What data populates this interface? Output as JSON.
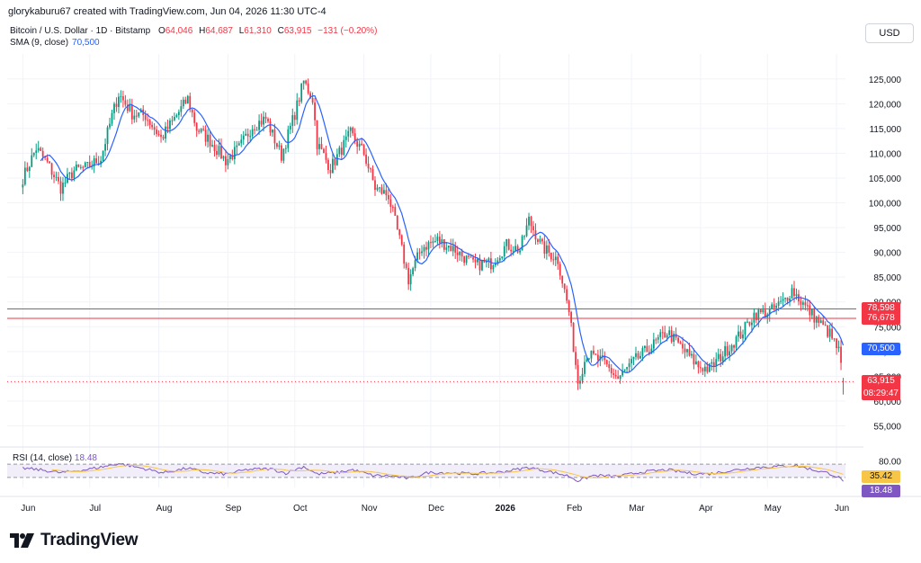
{
  "header": {
    "published_by": "glorykaburu67 created with TradingView.com, Jun 04, 2026 11:30 UTC-4"
  },
  "legend": {
    "symbol": "Bitcoin / U.S. Dollar · 1D · Bitstamp",
    "open_label": "O",
    "open": "64,046",
    "high_label": "H",
    "high": "64,687",
    "low_label": "L",
    "low": "61,310",
    "close_label": "C",
    "close": "63,915",
    "change": "−131 (−0.20%)",
    "sma_label": "SMA (9, close)",
    "sma_value": "70,500"
  },
  "currency_button": "USD",
  "brand": {
    "name": "TradingView"
  },
  "colors": {
    "up": "#089981",
    "down": "#f23645",
    "sma": "#2962ff",
    "rsi": "#7e57c2",
    "rsi_ma": "#f7c548",
    "hline": "#f23645",
    "rsi_band": "#ede7f6"
  },
  "chart_data": [
    {
      "type": "candlestick",
      "title": "Bitcoin / U.S. Dollar · 1D · Bitstamp",
      "x_tick_labels": [
        "Jun",
        "Jul",
        "Aug",
        "Sep",
        "Oct",
        "Nov",
        "Dec",
        "2026",
        "Feb",
        "Mar",
        "Apr",
        "May",
        "Jun"
      ],
      "ylim": [
        52000,
        127500
      ],
      "y_ticks": [
        55000,
        60000,
        65000,
        70000,
        75000,
        80000,
        85000,
        90000,
        95000,
        100000,
        105000,
        110000,
        115000,
        120000,
        125000
      ],
      "y_tick_labels": [
        "55,000",
        "60,000",
        "65,000",
        "70,000",
        "75,000",
        "80,000",
        "85,000",
        "90,000",
        "95,000",
        "100,000",
        "105,000",
        "110,000",
        "115,000",
        "120,000",
        "125,000"
      ],
      "close_path_by_date": [
        [
          "2025-06-01",
          105000
        ],
        [
          "2025-06-07",
          111000
        ],
        [
          "2025-06-12",
          108000
        ],
        [
          "2025-06-18",
          103000
        ],
        [
          "2025-06-24",
          106500
        ],
        [
          "2025-06-30",
          107200
        ],
        [
          "2025-07-06",
          109000
        ],
        [
          "2025-07-11",
          117500
        ],
        [
          "2025-07-14",
          122000
        ],
        [
          "2025-07-20",
          118000
        ],
        [
          "2025-07-26",
          117600
        ],
        [
          "2025-08-02",
          113000
        ],
        [
          "2025-08-08",
          117000
        ],
        [
          "2025-08-14",
          121000
        ],
        [
          "2025-08-18",
          115000
        ],
        [
          "2025-08-24",
          112500
        ],
        [
          "2025-08-31",
          108500
        ],
        [
          "2025-09-06",
          111000
        ],
        [
          "2025-09-12",
          115500
        ],
        [
          "2025-09-18",
          117000
        ],
        [
          "2025-09-25",
          109500
        ],
        [
          "2025-10-01",
          118000
        ],
        [
          "2025-10-05",
          124500
        ],
        [
          "2025-10-09",
          121000
        ],
        [
          "2025-10-11",
          112000
        ],
        [
          "2025-10-17",
          107000
        ],
        [
          "2025-10-26",
          114000
        ],
        [
          "2025-11-01",
          110000
        ],
        [
          "2025-11-06",
          103000
        ],
        [
          "2025-11-12",
          101500
        ],
        [
          "2025-11-17",
          92500
        ],
        [
          "2025-11-21",
          84500
        ],
        [
          "2025-11-27",
          91000
        ],
        [
          "2025-12-04",
          92500
        ],
        [
          "2025-12-12",
          90500
        ],
        [
          "2025-12-20",
          87500
        ],
        [
          "2025-12-28",
          87800
        ],
        [
          "2026-01-04",
          91500
        ],
        [
          "2026-01-10",
          90500
        ],
        [
          "2026-01-14",
          96500
        ],
        [
          "2026-01-20",
          91000
        ],
        [
          "2026-01-27",
          88500
        ],
        [
          "2026-02-01",
          78000
        ],
        [
          "2026-02-05",
          64000
        ],
        [
          "2026-02-09",
          69500
        ],
        [
          "2026-02-16",
          68000
        ],
        [
          "2026-02-23",
          64500
        ],
        [
          "2026-03-02",
          68000
        ],
        [
          "2026-03-10",
          71000
        ],
        [
          "2026-03-17",
          74000
        ],
        [
          "2026-03-24",
          70500
        ],
        [
          "2026-03-31",
          67000
        ],
        [
          "2026-04-05",
          66500
        ],
        [
          "2026-04-12",
          70000
        ],
        [
          "2026-04-19",
          73500
        ],
        [
          "2026-04-25",
          77500
        ],
        [
          "2026-05-02",
          78000
        ],
        [
          "2026-05-08",
          80000
        ],
        [
          "2026-05-12",
          82500
        ],
        [
          "2026-05-18",
          79000
        ],
        [
          "2026-05-24",
          76000
        ],
        [
          "2026-05-29",
          73500
        ],
        [
          "2026-06-02",
          70000
        ],
        [
          "2026-06-04",
          63915
        ]
      ],
      "last_values": {
        "open": 64046,
        "high": 64687,
        "low": 61310,
        "close": 63915,
        "change": -131,
        "change_pct": -0.2
      },
      "sma": {
        "name": "SMA (9, close)",
        "last": 70500
      },
      "horizontal_lines": [
        78598,
        76678
      ],
      "price_labels": [
        {
          "value": "78,598",
          "price": 78598,
          "color": "#f23645"
        },
        {
          "value": "76,678",
          "price": 76678,
          "color": "#f23645"
        },
        {
          "value": "70,500",
          "price": 70500,
          "color": "#2962ff"
        },
        {
          "value": "63,915",
          "price": 63915,
          "color": "#f23645"
        }
      ],
      "countdown": "08:29:47",
      "grid": true
    },
    {
      "type": "line",
      "title": "RSI (14, close)",
      "value": "18.48",
      "ylim": [
        0,
        100
      ],
      "y_ticks": [
        80
      ],
      "y_tick_labels": [
        "80.00"
      ],
      "band": [
        30,
        70
      ],
      "rsi_ma_value": "35.42",
      "rsi_path_by_date": [
        [
          "2025-06-01",
          58
        ],
        [
          "2025-06-10",
          52
        ],
        [
          "2025-06-18",
          44
        ],
        [
          "2025-06-30",
          54
        ],
        [
          "2025-07-10",
          66
        ],
        [
          "2025-07-14",
          72
        ],
        [
          "2025-07-25",
          57
        ],
        [
          "2025-08-03",
          44
        ],
        [
          "2025-08-14",
          58
        ],
        [
          "2025-08-22",
          44
        ],
        [
          "2025-08-31",
          40
        ],
        [
          "2025-09-10",
          54
        ],
        [
          "2025-09-20",
          56
        ],
        [
          "2025-09-27",
          43
        ],
        [
          "2025-10-05",
          63
        ],
        [
          "2025-10-11",
          40
        ],
        [
          "2025-10-20",
          45
        ],
        [
          "2025-10-27",
          53
        ],
        [
          "2025-11-05",
          36
        ],
        [
          "2025-11-14",
          34
        ],
        [
          "2025-11-21",
          27
        ],
        [
          "2025-11-30",
          45
        ],
        [
          "2025-12-10",
          44
        ],
        [
          "2025-12-20",
          41
        ],
        [
          "2026-01-01",
          46
        ],
        [
          "2026-01-14",
          60
        ],
        [
          "2026-01-25",
          45
        ],
        [
          "2026-02-01",
          34
        ],
        [
          "2026-02-05",
          20
        ],
        [
          "2026-02-12",
          36
        ],
        [
          "2026-02-23",
          33
        ],
        [
          "2026-03-05",
          46
        ],
        [
          "2026-03-17",
          53
        ],
        [
          "2026-03-28",
          42
        ],
        [
          "2026-04-05",
          41
        ],
        [
          "2026-04-15",
          51
        ],
        [
          "2026-04-26",
          60
        ],
        [
          "2026-05-08",
          64
        ],
        [
          "2026-05-14",
          66
        ],
        [
          "2026-05-22",
          52
        ],
        [
          "2026-05-29",
          42
        ],
        [
          "2026-06-02",
          30
        ],
        [
          "2026-06-04",
          18.48
        ]
      ]
    }
  ]
}
